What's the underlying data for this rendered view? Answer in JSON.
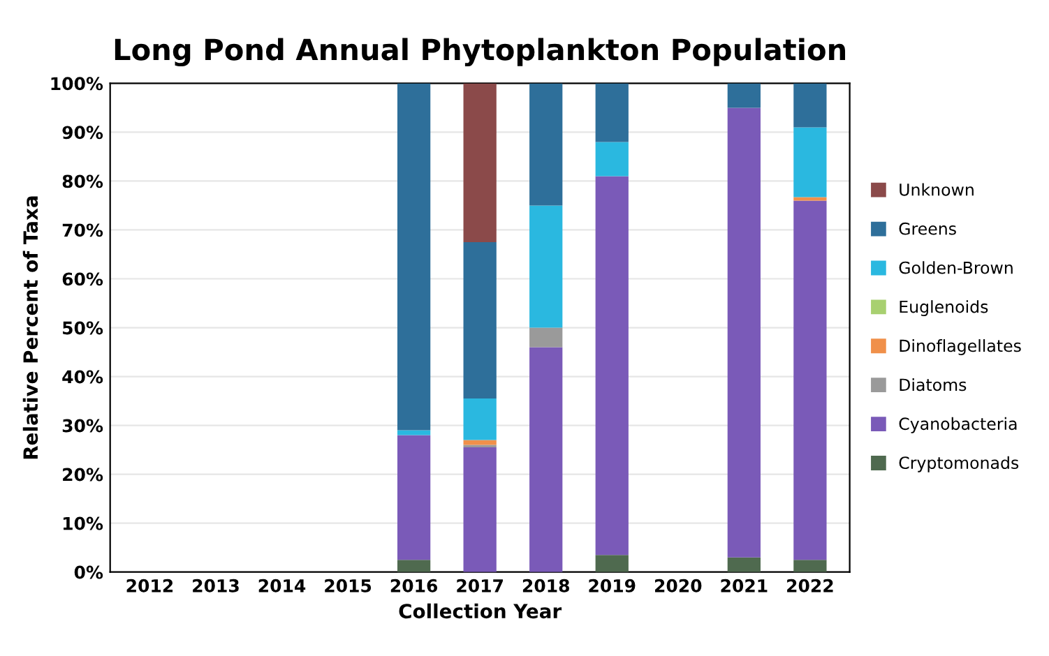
{
  "chart_data": {
    "type": "bar",
    "stacked": true,
    "title": "Long Pond Annual Phytoplankton Population",
    "xlabel": "Collection Year",
    "ylabel": "Relative Percent of Taxa",
    "categories": [
      "2012",
      "2013",
      "2014",
      "2015",
      "2016",
      "2017",
      "2018",
      "2019",
      "2020",
      "2021",
      "2022"
    ],
    "series": [
      {
        "name": "Cryptomonads",
        "color": "#4f6a4f",
        "values": [
          null,
          null,
          null,
          null,
          2.5,
          0,
          0,
          3.5,
          null,
          3,
          2.5
        ]
      },
      {
        "name": "Cyanobacteria",
        "color": "#7a5ab8",
        "values": [
          null,
          null,
          null,
          null,
          25.5,
          25.5,
          46,
          77.5,
          null,
          92,
          73.5
        ]
      },
      {
        "name": "Diatoms",
        "color": "#9a9a9a",
        "values": [
          null,
          null,
          null,
          null,
          0,
          0.5,
          4,
          0,
          null,
          0,
          0
        ]
      },
      {
        "name": "Dinoflagellates",
        "color": "#f0904a",
        "values": [
          null,
          null,
          null,
          null,
          0,
          1,
          0,
          0,
          null,
          0,
          0.7
        ]
      },
      {
        "name": "Euglenoids",
        "color": "#a8d070",
        "values": [
          null,
          null,
          null,
          null,
          0,
          0,
          0,
          0,
          null,
          0,
          0
        ]
      },
      {
        "name": "Golden-Brown",
        "color": "#2ab8e0",
        "values": [
          null,
          null,
          null,
          null,
          1,
          8.5,
          25,
          7,
          null,
          0,
          14.3
        ]
      },
      {
        "name": "Greens",
        "color": "#2e6f9a",
        "values": [
          null,
          null,
          null,
          null,
          71,
          32,
          25,
          12,
          null,
          5,
          9
        ]
      },
      {
        "name": "Unknown",
        "color": "#8b4a4a",
        "values": [
          null,
          null,
          null,
          null,
          0,
          32.5,
          0,
          0,
          null,
          0,
          0
        ]
      }
    ],
    "ylim": [
      0,
      100
    ],
    "yticks": [
      {
        "value": 0,
        "label": "0%"
      },
      {
        "value": 10,
        "label": "10%"
      },
      {
        "value": 20,
        "label": "20%"
      },
      {
        "value": 30,
        "label": "30%"
      },
      {
        "value": 40,
        "label": "40%"
      },
      {
        "value": 50,
        "label": "50%"
      },
      {
        "value": 60,
        "label": "60%"
      },
      {
        "value": 70,
        "label": "70%"
      },
      {
        "value": 80,
        "label": "80%"
      },
      {
        "value": 90,
        "label": "90%"
      },
      {
        "value": 100,
        "label": "100%"
      }
    ],
    "grid": "y",
    "legend": "right"
  }
}
